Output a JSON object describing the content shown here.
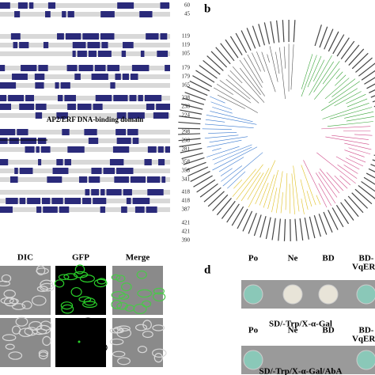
{
  "alignment": {
    "blocks": [
      [
        60,
        45
      ],
      [
        119,
        119,
        105
      ],
      [
        179,
        179,
        165
      ],
      [
        238,
        238,
        224
      ],
      [
        298,
        298,
        281
      ],
      [
        358,
        358,
        341
      ],
      [
        418,
        418,
        387
      ],
      [
        421,
        421,
        390
      ]
    ],
    "domain_label": "AP2/ERF DNA-binding domain"
  },
  "tree": {
    "panel_label": "b"
  },
  "localization": {
    "columns": [
      "DIC",
      "GFP",
      "Merge"
    ]
  },
  "y2h": {
    "panel_label": "d",
    "rows": [
      {
        "labels": [
          [
            "Po"
          ],
          [
            "Ne"
          ],
          [
            "BD"
          ],
          [
            "BD-",
            "VqERF"
          ]
        ],
        "caption": "SD/-Trp/X-α-Gal"
      },
      {
        "labels": [
          [
            "Po"
          ],
          [
            "Ne"
          ],
          [
            "BD"
          ],
          [
            "BD-",
            "VqERF"
          ]
        ],
        "caption": "SD/-Trp/X-α-Gal/AbA"
      }
    ]
  }
}
